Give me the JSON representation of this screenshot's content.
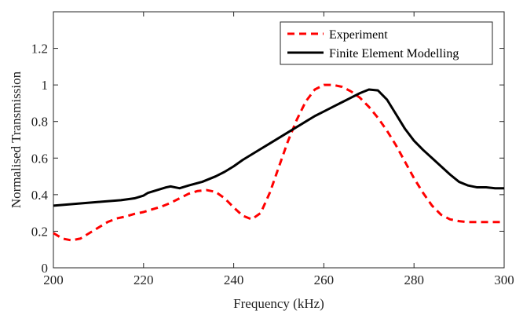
{
  "chart_data": {
    "type": "line",
    "xlabel": "Frequency (kHz)",
    "ylabel": "Normalised Transmission",
    "xlim": [
      200,
      300
    ],
    "ylim": [
      0,
      1.4
    ],
    "xticks": [
      200,
      220,
      240,
      260,
      280,
      300
    ],
    "yticks": [
      0,
      0.2,
      0.4,
      0.6,
      0.8,
      1,
      1.2
    ],
    "xtick_labels": [
      "200",
      "220",
      "240",
      "260",
      "280",
      "300"
    ],
    "ytick_labels": [
      "0",
      "0.2",
      "0.4",
      "0.6",
      "0.8",
      "1",
      "1.2"
    ],
    "grid": false,
    "legend_position": "top-right",
    "series": [
      {
        "name": "Experiment",
        "color": "#ff0000",
        "style": "dashed",
        "x": [
          200,
          202,
          204,
          206,
          208,
          210,
          212,
          214,
          216,
          218,
          220,
          222,
          224,
          226,
          228,
          230,
          232,
          234,
          236,
          238,
          240,
          242,
          244,
          246,
          248,
          250,
          252,
          254,
          256,
          258,
          260,
          262,
          264,
          266,
          268,
          270,
          272,
          274,
          276,
          278,
          280,
          282,
          284,
          286,
          288,
          290,
          292,
          294,
          296,
          298,
          300
        ],
        "y": [
          0.19,
          0.16,
          0.15,
          0.16,
          0.19,
          0.22,
          0.25,
          0.27,
          0.28,
          0.295,
          0.305,
          0.32,
          0.335,
          0.355,
          0.38,
          0.405,
          0.42,
          0.425,
          0.415,
          0.38,
          0.33,
          0.285,
          0.265,
          0.3,
          0.41,
          0.55,
          0.69,
          0.81,
          0.91,
          0.975,
          1.0,
          1.0,
          0.99,
          0.965,
          0.93,
          0.88,
          0.82,
          0.75,
          0.67,
          0.58,
          0.49,
          0.41,
          0.34,
          0.29,
          0.265,
          0.255,
          0.25,
          0.25,
          0.25,
          0.25,
          0.25
        ]
      },
      {
        "name": "Finite Element Modelling",
        "color": "#000000",
        "style": "solid",
        "x": [
          200,
          205,
          210,
          215,
          218,
          220,
          221,
          223,
          225,
          226,
          227,
          228,
          230,
          233,
          236,
          238,
          240,
          242,
          244,
          246,
          248,
          250,
          252,
          254,
          256,
          258,
          260,
          262,
          264,
          266,
          268,
          270,
          272,
          274,
          276,
          278,
          280,
          282,
          284,
          286,
          288,
          290,
          292,
          294,
          296,
          298,
          300
        ],
        "y": [
          0.34,
          0.35,
          0.36,
          0.37,
          0.38,
          0.395,
          0.41,
          0.425,
          0.44,
          0.445,
          0.44,
          0.435,
          0.45,
          0.47,
          0.5,
          0.525,
          0.555,
          0.59,
          0.62,
          0.65,
          0.68,
          0.71,
          0.74,
          0.77,
          0.8,
          0.83,
          0.855,
          0.88,
          0.905,
          0.93,
          0.955,
          0.975,
          0.97,
          0.92,
          0.84,
          0.76,
          0.695,
          0.645,
          0.6,
          0.555,
          0.51,
          0.47,
          0.45,
          0.44,
          0.44,
          0.435,
          0.435
        ]
      }
    ]
  }
}
